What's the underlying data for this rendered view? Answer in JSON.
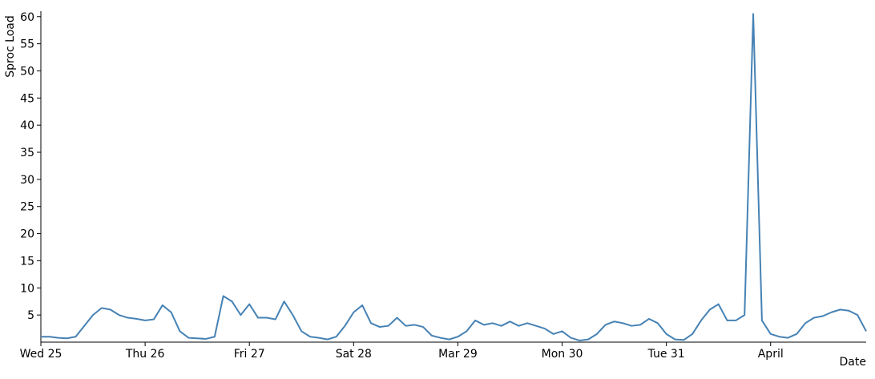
{
  "chart_data": {
    "type": "line",
    "y_label": "Sproc Load",
    "x_label": "Date",
    "x": [
      0,
      2,
      4,
      6,
      8,
      10,
      12,
      14,
      16,
      18,
      20,
      22,
      24,
      26,
      28,
      30,
      32,
      34,
      36,
      38,
      40,
      42,
      44,
      46,
      48,
      50,
      52,
      54,
      56,
      58,
      60,
      62,
      64,
      66,
      68,
      70,
      72,
      74,
      76,
      78,
      80,
      82,
      84,
      86,
      88,
      90,
      92,
      94,
      96,
      98,
      100,
      102,
      104,
      106,
      108,
      110,
      112,
      114,
      116,
      118,
      120,
      122,
      124,
      126,
      128,
      130,
      132,
      134,
      136,
      138,
      140,
      142,
      144,
      146,
      148,
      150,
      152,
      154,
      156,
      158,
      160,
      162,
      164,
      166,
      168,
      170,
      172,
      174,
      176,
      178,
      180,
      182,
      184,
      186,
      188,
      190
    ],
    "series": [
      {
        "name": "Sproc Load",
        "color": "#4682b4",
        "values": [
          1,
          1,
          0.8,
          0.7,
          1,
          3,
          5,
          6.3,
          6,
          5,
          4.5,
          4.3,
          4,
          4.2,
          6.8,
          5.5,
          2,
          0.8,
          0.7,
          0.6,
          1,
          8.5,
          7.5,
          5,
          7,
          4.5,
          4.5,
          4.2,
          7.5,
          5,
          2,
          1,
          0.8,
          0.5,
          1,
          3,
          5.5,
          6.8,
          3.5,
          2.8,
          3,
          4.5,
          3,
          3.2,
          2.8,
          1.2,
          0.8,
          0.5,
          1,
          2,
          4,
          3.2,
          3.5,
          3,
          3.8,
          3,
          3.5,
          3,
          2.5,
          1.5,
          2,
          0.8,
          0.3,
          0.5,
          1.5,
          3.2,
          3.8,
          3.5,
          3,
          3.2,
          4.3,
          3.5,
          1.5,
          0.5,
          0.4,
          1.5,
          4,
          6,
          7,
          4,
          4,
          5,
          60.5,
          4,
          1.5,
          1,
          0.8,
          1.5,
          3.5,
          4.5,
          4.8,
          5.5,
          6,
          5.8,
          5,
          2
        ]
      }
    ],
    "xlim": [
      0,
      190
    ],
    "xticks": [
      {
        "value": 0,
        "label": "Wed 25"
      },
      {
        "value": 24,
        "label": "Thu 26"
      },
      {
        "value": 48,
        "label": "Fri 27"
      },
      {
        "value": 72,
        "label": "Sat 28"
      },
      {
        "value": 96,
        "label": "Mar 29"
      },
      {
        "value": 120,
        "label": "Mon 30"
      },
      {
        "value": 144,
        "label": "Tue 31"
      },
      {
        "value": 168,
        "label": "April"
      }
    ],
    "ylim": [
      0,
      61
    ],
    "yticks": [
      5,
      10,
      15,
      20,
      25,
      30,
      35,
      40,
      45,
      50,
      55,
      60
    ],
    "grid": false
  }
}
